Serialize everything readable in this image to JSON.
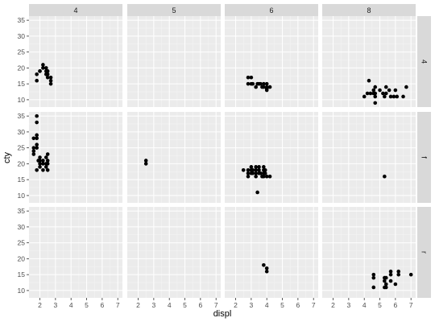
{
  "chart_data": {
    "type": "scatter",
    "facet_type": "grid",
    "xlabel": "displ",
    "ylabel": "cty",
    "xlim": [
      1.3,
      7.3
    ],
    "ylim": [
      7.7,
      36.3
    ],
    "x_ticks": [
      2,
      3,
      4,
      5,
      6,
      7
    ],
    "y_ticks": [
      10,
      15,
      20,
      25,
      30,
      35
    ],
    "grid": true,
    "col_facets": [
      "4",
      "5",
      "6",
      "8"
    ],
    "row_facets": [
      "4",
      "f",
      "r"
    ],
    "colors": {
      "panel": "#ebebeb",
      "grid_major": "#ffffff",
      "strip": "#d9d9d9",
      "point": "#000000"
    },
    "panels": [
      {
        "row": "4",
        "col": "4",
        "points": [
          [
            1.8,
            16
          ],
          [
            1.8,
            18
          ],
          [
            2.0,
            19
          ],
          [
            2.0,
            19
          ],
          [
            2.2,
            20
          ],
          [
            2.2,
            21
          ],
          [
            2.4,
            19
          ],
          [
            2.4,
            20
          ],
          [
            2.4,
            18
          ],
          [
            2.5,
            18
          ],
          [
            2.5,
            19
          ],
          [
            2.5,
            17
          ],
          [
            2.7,
            17
          ],
          [
            2.7,
            16
          ],
          [
            2.7,
            15
          ]
        ]
      },
      {
        "row": "4",
        "col": "5",
        "points": []
      },
      {
        "row": "4",
        "col": "6",
        "points": [
          [
            2.8,
            15
          ],
          [
            2.8,
            17
          ],
          [
            3.0,
            17
          ],
          [
            3.0,
            15
          ],
          [
            3.1,
            15
          ],
          [
            3.3,
            14
          ],
          [
            3.4,
            15
          ],
          [
            3.5,
            15
          ],
          [
            3.6,
            15
          ],
          [
            3.7,
            14
          ],
          [
            3.8,
            15
          ],
          [
            3.8,
            14
          ],
          [
            4.0,
            15
          ],
          [
            4.0,
            14
          ],
          [
            4.0,
            13
          ],
          [
            4.2,
            14
          ],
          [
            4.0,
            13.5
          ]
        ]
      },
      {
        "row": "4",
        "col": "8",
        "points": [
          [
            4.0,
            11
          ],
          [
            4.2,
            12
          ],
          [
            4.3,
            16
          ],
          [
            4.4,
            12
          ],
          [
            4.6,
            13
          ],
          [
            4.6,
            12
          ],
          [
            4.7,
            11
          ],
          [
            4.7,
            9
          ],
          [
            4.7,
            14
          ],
          [
            4.7,
            12
          ],
          [
            5.0,
            13
          ],
          [
            5.2,
            12
          ],
          [
            5.3,
            11
          ],
          [
            5.4,
            14
          ],
          [
            5.4,
            12
          ],
          [
            5.6,
            13
          ],
          [
            5.7,
            11
          ],
          [
            5.9,
            11
          ],
          [
            6.0,
            13
          ],
          [
            6.1,
            11
          ],
          [
            6.5,
            11
          ],
          [
            6.7,
            14
          ]
        ]
      },
      {
        "row": "f",
        "col": "4",
        "points": [
          [
            1.6,
            24
          ],
          [
            1.6,
            25
          ],
          [
            1.6,
            23
          ],
          [
            1.6,
            28
          ],
          [
            1.8,
            28
          ],
          [
            1.8,
            26
          ],
          [
            1.8,
            25
          ],
          [
            1.8,
            29
          ],
          [
            1.8,
            33
          ],
          [
            1.8,
            35
          ],
          [
            1.8,
            18
          ],
          [
            1.9,
            21
          ],
          [
            2.0,
            21
          ],
          [
            2.0,
            19
          ],
          [
            2.0,
            22
          ],
          [
            2.0,
            20
          ],
          [
            2.2,
            21
          ],
          [
            2.2,
            20
          ],
          [
            2.2,
            18
          ],
          [
            2.4,
            20
          ],
          [
            2.4,
            22
          ],
          [
            2.4,
            19
          ],
          [
            2.5,
            21
          ],
          [
            2.5,
            18
          ],
          [
            2.5,
            23
          ],
          [
            2.5,
            20
          ]
        ]
      },
      {
        "row": "f",
        "col": "5",
        "points": [
          [
            2.5,
            20
          ],
          [
            2.5,
            21
          ]
        ]
      },
      {
        "row": "f",
        "col": "6",
        "points": [
          [
            2.5,
            18
          ],
          [
            2.8,
            16
          ],
          [
            2.8,
            18
          ],
          [
            2.8,
            17
          ],
          [
            3.0,
            18
          ],
          [
            3.0,
            17
          ],
          [
            3.0,
            19
          ],
          [
            3.1,
            18
          ],
          [
            3.1,
            17
          ],
          [
            3.3,
            17
          ],
          [
            3.3,
            16
          ],
          [
            3.3,
            18
          ],
          [
            3.3,
            19
          ],
          [
            3.4,
            11
          ],
          [
            3.5,
            19
          ],
          [
            3.5,
            18
          ],
          [
            3.5,
            17
          ],
          [
            3.6,
            17
          ],
          [
            3.7,
            16
          ],
          [
            3.8,
            18
          ],
          [
            3.8,
            19
          ],
          [
            3.8,
            16
          ],
          [
            3.8,
            17
          ],
          [
            3.9,
            18
          ],
          [
            4.0,
            16
          ],
          [
            4.2,
            16
          ],
          [
            3.9,
            17
          ]
        ]
      },
      {
        "row": "f",
        "col": "8",
        "points": [
          [
            5.3,
            16
          ]
        ]
      },
      {
        "row": "r",
        "col": "4",
        "points": []
      },
      {
        "row": "r",
        "col": "5",
        "points": []
      },
      {
        "row": "r",
        "col": "6",
        "points": [
          [
            3.8,
            18
          ],
          [
            4.0,
            17
          ],
          [
            4.0,
            16
          ]
        ]
      },
      {
        "row": "r",
        "col": "8",
        "points": [
          [
            4.6,
            15
          ],
          [
            4.6,
            14
          ],
          [
            4.6,
            11
          ],
          [
            5.3,
            14
          ],
          [
            5.3,
            13
          ],
          [
            5.3,
            11
          ],
          [
            5.4,
            11
          ],
          [
            5.4,
            12
          ],
          [
            5.4,
            14
          ],
          [
            5.7,
            13
          ],
          [
            5.7,
            16
          ],
          [
            5.7,
            15
          ],
          [
            6.0,
            12
          ],
          [
            6.2,
            16
          ],
          [
            6.2,
            15
          ],
          [
            7.0,
            15
          ]
        ]
      }
    ]
  }
}
